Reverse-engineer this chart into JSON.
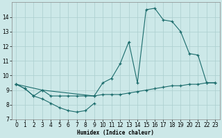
{
  "xlabel": "Humidex (Indice chaleur)",
  "xlim": [
    -0.5,
    23.5
  ],
  "ylim": [
    7,
    15
  ],
  "yticks": [
    7,
    8,
    9,
    10,
    11,
    12,
    13,
    14
  ],
  "xticks": [
    0,
    1,
    2,
    3,
    4,
    5,
    6,
    7,
    8,
    9,
    10,
    11,
    12,
    13,
    14,
    15,
    16,
    17,
    18,
    19,
    20,
    21,
    22,
    23
  ],
  "bg_color": "#cce8e8",
  "grid_color": "#aacece",
  "line_color": "#1a6b6b",
  "line1_x": [
    0,
    1,
    2,
    3,
    4,
    5,
    6,
    7,
    8,
    9
  ],
  "line1_y": [
    9.4,
    9.1,
    8.6,
    8.4,
    8.1,
    7.8,
    7.6,
    7.5,
    7.6,
    8.1
  ],
  "line2_x": [
    0,
    1,
    2,
    3,
    4,
    5,
    6,
    7,
    8,
    9,
    10,
    11,
    12,
    13,
    14,
    15,
    16,
    17,
    18,
    19,
    20,
    21,
    22,
    23
  ],
  "line2_y": [
    9.4,
    9.1,
    8.6,
    9.0,
    8.6,
    8.6,
    8.6,
    8.6,
    8.6,
    8.6,
    8.7,
    8.7,
    8.7,
    8.8,
    8.9,
    9.0,
    9.1,
    9.2,
    9.3,
    9.3,
    9.4,
    9.4,
    9.5,
    9.5
  ],
  "line3_x": [
    0,
    3,
    9,
    10,
    11,
    12,
    13,
    14,
    15,
    16,
    17,
    18,
    19,
    20,
    21,
    22,
    23
  ],
  "line3_y": [
    9.4,
    9.0,
    8.6,
    9.5,
    9.8,
    10.8,
    12.3,
    9.5,
    14.5,
    14.6,
    13.8,
    13.7,
    13.0,
    11.5,
    11.4,
    9.5,
    9.5
  ]
}
